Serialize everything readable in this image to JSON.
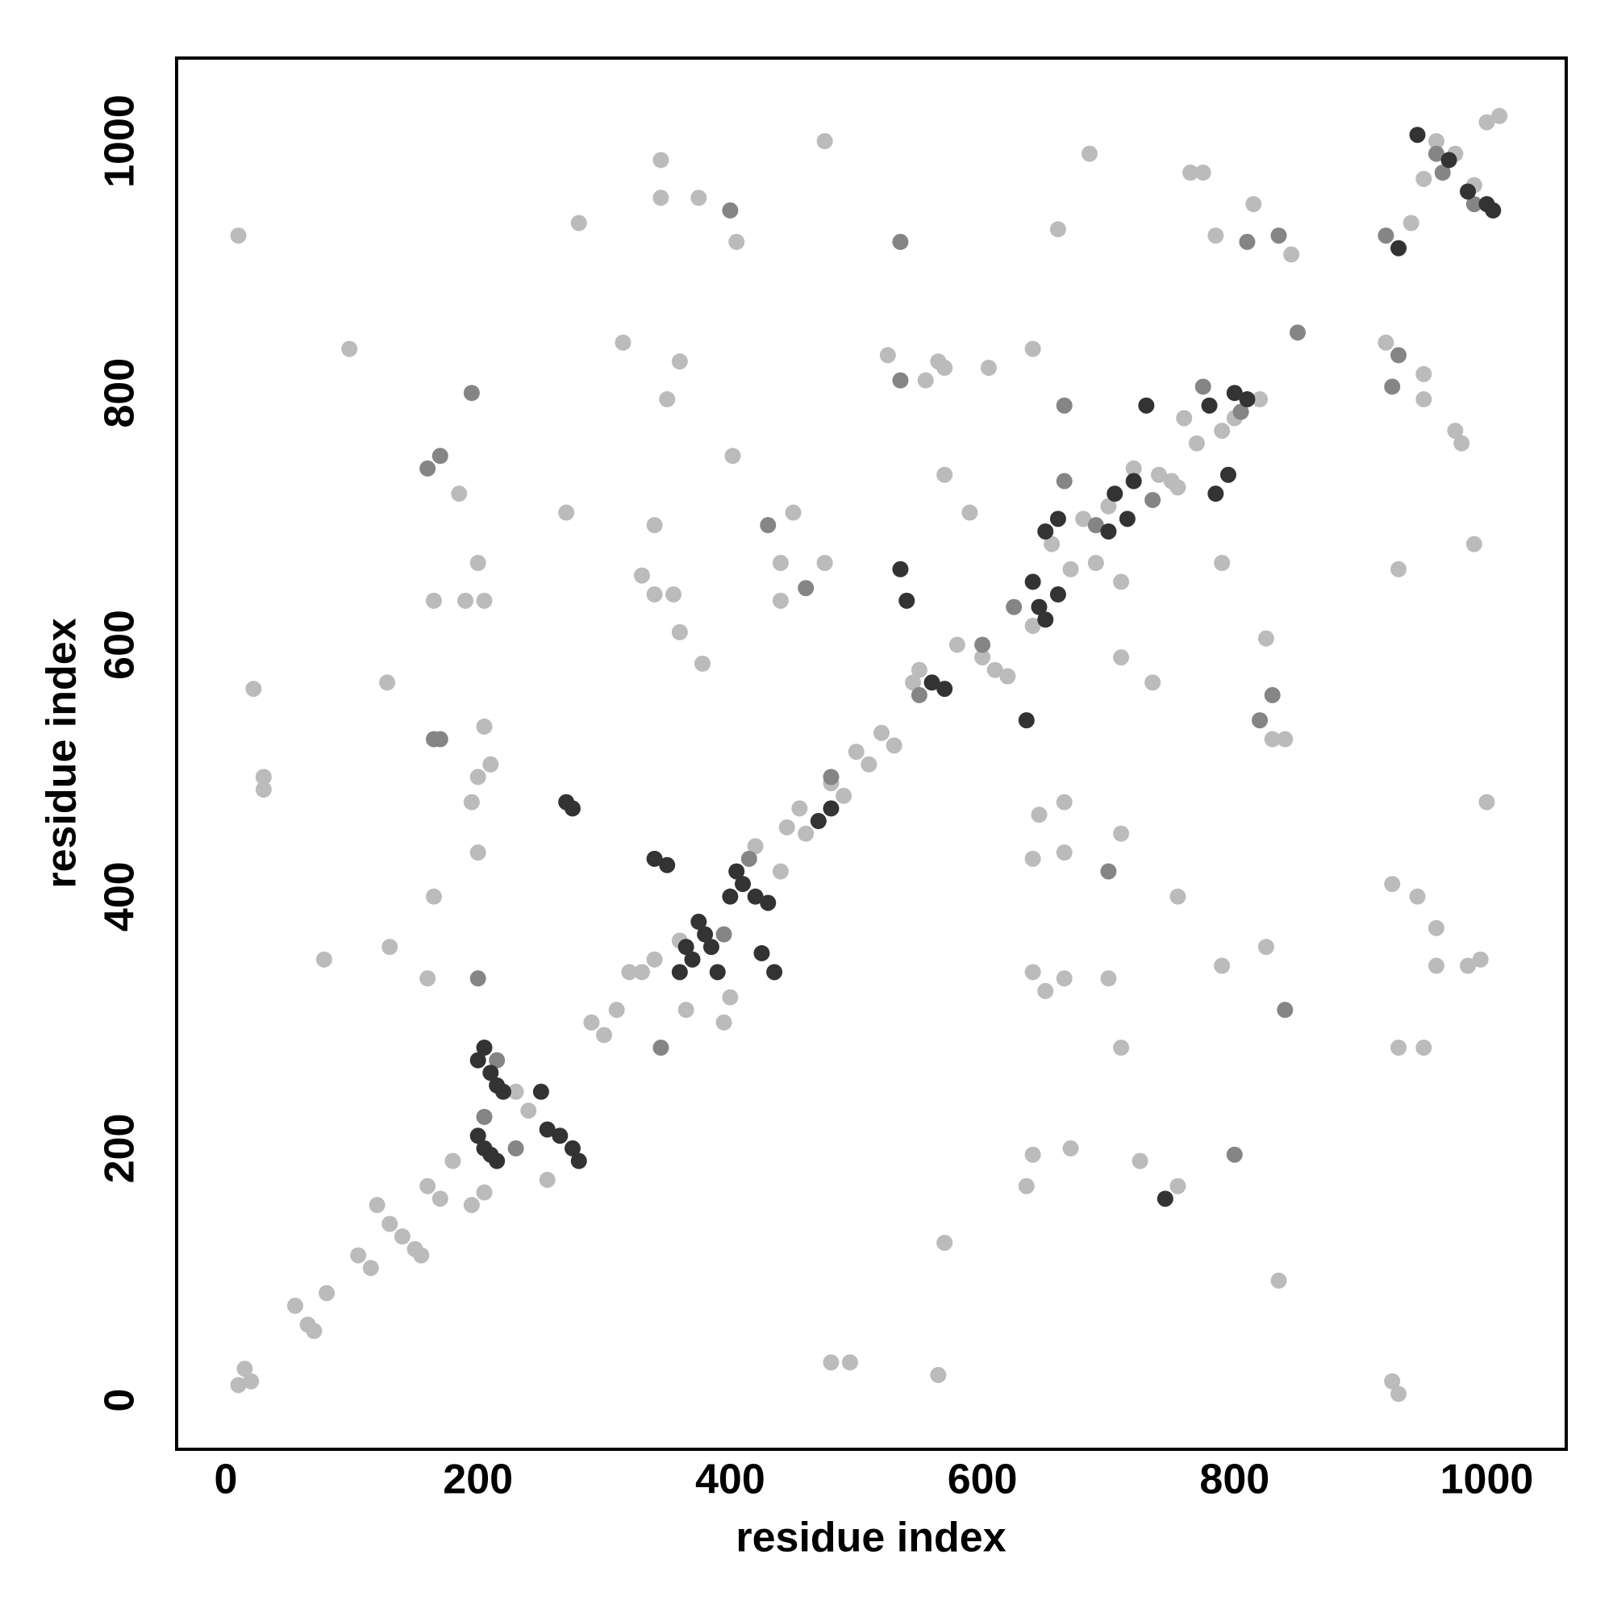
{
  "chart_data": {
    "type": "scatter",
    "xlabel": "residue index",
    "ylabel": "residue index",
    "xlim": [
      -39,
      1063
    ],
    "ylim": [
      -39,
      1066
    ],
    "xticks": [
      0,
      200,
      400,
      600,
      800,
      1000
    ],
    "yticks": [
      0,
      200,
      400,
      600,
      800,
      1000
    ],
    "series": [
      {
        "color": "#bbbbbb",
        "x": [
          10,
          98,
          185,
          190,
          200,
          205,
          165,
          200,
          210,
          195,
          205,
          200,
          165,
          160,
          78,
          130,
          128,
          22,
          30,
          30,
          280,
          270,
          345,
          345,
          375,
          405,
          315,
          350,
          360,
          340,
          330,
          340,
          355,
          360,
          378,
          402,
          450,
          440,
          440,
          475,
          475,
          525,
          565,
          570,
          555,
          605,
          590,
          570,
          640,
          660,
          685,
          765,
          775,
          785,
          815,
          845,
          940,
          1000,
          920,
          950,
          950,
          975,
          980,
          990,
          1000,
          925,
          930,
          480,
          495,
          565,
          835,
          570,
          755,
          725,
          670,
          640,
          635,
          700,
          665,
          650,
          640,
          710,
          645,
          665,
          665,
          640,
          710,
          755,
          790,
          825,
          830,
          840,
          825,
          790,
          735,
          710,
          755,
          930,
          960,
          985,
          995,
          925,
          945,
          960,
          930,
          950,
          10,
          15,
          20,
          55,
          65,
          70,
          80,
          105,
          115,
          120,
          130,
          140,
          150,
          155,
          160,
          170,
          180,
          195,
          205,
          240,
          230,
          255,
          290,
          300,
          310,
          320,
          330,
          340,
          360,
          365,
          395,
          400,
          420,
          440,
          445,
          455,
          460,
          480,
          490,
          500,
          510,
          520,
          530,
          545,
          550,
          580,
          600,
          610,
          620,
          640,
          655,
          670,
          680,
          690,
          700,
          710,
          720,
          740,
          750,
          760,
          770,
          790,
          800,
          820,
          950,
          960,
          975,
          990,
          1010
        ],
        "values": [
          925,
          835,
          720,
          635,
          665,
          635,
          635,
          495,
          505,
          475,
          535,
          435,
          400,
          335,
          350,
          360,
          570,
          565,
          495,
          485,
          935,
          705,
          985,
          955,
          955,
          920,
          840,
          795,
          825,
          695,
          655,
          640,
          640,
          610,
          585,
          750,
          705,
          665,
          635,
          665,
          1000,
          830,
          825,
          820,
          810,
          820,
          705,
          735,
          835,
          930,
          990,
          975,
          975,
          925,
          950,
          910,
          935,
          1015,
          840,
          815,
          795,
          770,
          760,
          680,
          475,
          15,
          5,
          30,
          30,
          20,
          95,
          125,
          170,
          190,
          200,
          195,
          170,
          335,
          335,
          325,
          340,
          280,
          465,
          475,
          435,
          430,
          450,
          400,
          345,
          360,
          525,
          525,
          605,
          665,
          570,
          590,
          725,
          660,
          345,
          345,
          350,
          410,
          400,
          375,
          280,
          280,
          12,
          25,
          15,
          75,
          60,
          55,
          85,
          115,
          105,
          155,
          140,
          130,
          120,
          115,
          170,
          160,
          190,
          155,
          165,
          230,
          245,
          175,
          300,
          290,
          310,
          340,
          340,
          350,
          365,
          310,
          300,
          320,
          440,
          420,
          455,
          470,
          450,
          490,
          480,
          515,
          505,
          530,
          520,
          570,
          580,
          600,
          590,
          580,
          575,
          615,
          680,
          660,
          700,
          665,
          710,
          650,
          740,
          735,
          730,
          780,
          760,
          770,
          780,
          795,
          970,
          1000,
          990,
          965,
          1020
        ]
      },
      {
        "color": "#858585",
        "x": [
          195,
          160,
          170,
          165,
          170,
          200,
          400,
          430,
          460,
          535,
          535,
          665,
          665,
          810,
          835,
          850,
          960,
          920,
          930,
          925,
          800,
          700,
          840,
          820,
          830,
          205,
          215,
          230,
          345,
          395,
          415,
          480,
          550,
          600,
          625,
          690,
          735,
          775,
          805,
          965,
          990
        ],
        "values": [
          800,
          740,
          750,
          525,
          525,
          335,
          945,
          695,
          645,
          920,
          810,
          790,
          730,
          920,
          925,
          848,
          990,
          925,
          830,
          805,
          195,
          420,
          310,
          540,
          560,
          225,
          270,
          200,
          280,
          370,
          430,
          495,
          560,
          600,
          630,
          695,
          715,
          805,
          785,
          975,
          950
        ]
      },
      {
        "color": "#333333",
        "x": [
          200,
          205,
          210,
          215,
          200,
          210,
          215,
          205,
          220,
          255,
          265,
          275,
          280,
          250,
          270,
          275,
          340,
          350,
          360,
          365,
          370,
          375,
          380,
          385,
          390,
          400,
          405,
          410,
          420,
          430,
          435,
          425,
          470,
          480,
          560,
          570,
          540,
          535,
          635,
          640,
          645,
          650,
          660,
          650,
          660,
          700,
          705,
          715,
          720,
          730,
          780,
          785,
          795,
          800,
          810,
          945,
          970,
          985,
          1000,
          1005,
          930,
          745
        ],
        "values": [
          210,
          200,
          195,
          190,
          270,
          260,
          250,
          280,
          245,
          215,
          210,
          200,
          190,
          245,
          475,
          470,
          430,
          425,
          340,
          360,
          350,
          380,
          370,
          360,
          340,
          400,
          420,
          410,
          400,
          395,
          340,
          355,
          460,
          470,
          570,
          565,
          635,
          660,
          540,
          650,
          630,
          620,
          640,
          690,
          700,
          690,
          720,
          700,
          730,
          790,
          790,
          720,
          735,
          800,
          795,
          1005,
          985,
          960,
          950,
          945,
          915,
          160
        ]
      }
    ]
  }
}
